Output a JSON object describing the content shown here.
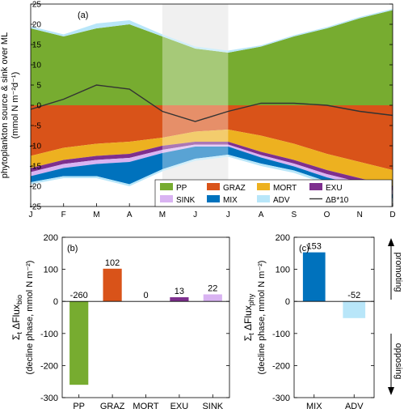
{
  "chart_data": [
    {
      "panel_label": "(a)",
      "type": "area",
      "ylabel_lines": [
        "phytoplankton source & sink over ML",
        "(mmol N m⁻²d⁻¹)"
      ],
      "x": [
        "J",
        "F",
        "M",
        "A",
        "M",
        "J",
        "J",
        "A",
        "S",
        "O",
        "N",
        "D"
      ],
      "ylim": [
        -25,
        25
      ],
      "yticks": [
        25,
        20,
        15,
        10,
        5,
        0,
        -5,
        -10,
        -15,
        -20,
        -25
      ],
      "shaded_months": [
        "M",
        "J",
        "J"
      ],
      "series": [
        {
          "name": "PP",
          "color": "#77ac30",
          "values": [
            19,
            17,
            19,
            20,
            17,
            14,
            13,
            14.5,
            17,
            19,
            21.5,
            23.5
          ]
        },
        {
          "name": "ADV",
          "color": "#b8e6f9",
          "values": [
            0.5,
            0.5,
            1.2,
            1,
            0.5,
            0.5,
            0.5,
            0.3,
            0.3,
            0.3,
            0.3,
            0.3
          ]
        },
        {
          "name": "GRAZ",
          "color": "#d95319",
          "values": [
            -12.5,
            -10.5,
            -9.5,
            -9,
            -8,
            -6.5,
            -6,
            -7.5,
            -9.5,
            -12,
            -14,
            -16
          ]
        },
        {
          "name": "MORT",
          "color": "#edb120",
          "values": [
            -3,
            -3,
            -3,
            -3,
            -2,
            -2.5,
            -3,
            -4,
            -4,
            -4,
            -4,
            -4
          ]
        },
        {
          "name": "EXU",
          "color": "#7e2f8e",
          "values": [
            -1,
            -1,
            -1,
            -1,
            -1,
            -0.7,
            -0.7,
            -0.8,
            -0.9,
            -1,
            -1,
            -1
          ]
        },
        {
          "name": "SINK",
          "color": "#d9b3f2",
          "values": [
            -1,
            -1,
            -1,
            -1,
            -0.8,
            -0.5,
            -0.5,
            -0.6,
            -0.7,
            -0.8,
            -0.9,
            -1
          ]
        },
        {
          "name": "MIX",
          "color": "#0072bd",
          "values": [
            -1.5,
            -2,
            -3,
            -5.5,
            -4,
            -3,
            -2,
            -1.5,
            -1,
            -1,
            -1,
            -1
          ]
        },
        {
          "name": "ADV",
          "color": "#b8e6f9",
          "values": [
            -0.5,
            -0.5,
            -0.5,
            -0.5,
            -0.5,
            -0.5,
            -0.5,
            -0.6,
            -0.6,
            -0.7,
            -0.7,
            -0.8
          ]
        }
      ],
      "line_series": {
        "name": "ΔB*10",
        "color": "#333333",
        "values": [
          -1,
          1.5,
          5,
          4,
          -1.5,
          -4,
          -1.5,
          0.5,
          0.5,
          0,
          -1.5,
          -2.5
        ]
      },
      "legend": [
        "PP",
        "GRAZ",
        "MORT",
        "EXU",
        "SINK",
        "MIX",
        "ADV",
        "ΔB*10"
      ],
      "legend_placement": "bottom-right"
    },
    {
      "panel_label": "(b)",
      "type": "bar",
      "ylabel_lines": [
        "Σ_t ΔFlux_bio",
        "(decline phase, mmol N m⁻²)"
      ],
      "categories": [
        "PP",
        "GRAZ",
        "MORT",
        "EXU",
        "SINK"
      ],
      "values": [
        -260,
        102,
        0,
        13,
        22
      ],
      "value_labels": [
        "-260",
        "102",
        "0",
        "13",
        "22"
      ],
      "colors": [
        "#77ac30",
        "#d95319",
        "#edb120",
        "#7e2f8e",
        "#d9b3f2"
      ],
      "ylim": [
        -300,
        200
      ],
      "yticks": [
        200,
        100,
        0,
        -100,
        -200,
        -300
      ]
    },
    {
      "panel_label": "(c)",
      "type": "bar",
      "ylabel_lines": [
        "Σ_t ΔFlux_phy",
        "(decline phase, mmol N m⁻²)"
      ],
      "categories": [
        "MIX",
        "ADV"
      ],
      "values": [
        153,
        -52
      ],
      "value_labels": [
        "153",
        "-52"
      ],
      "colors": [
        "#0072bd",
        "#b8e6f9"
      ],
      "ylim": [
        -300,
        200
      ],
      "yticks": [
        200,
        100,
        0,
        -100,
        -200,
        -300
      ]
    }
  ],
  "side_annotations": {
    "promoting": "promoting",
    "opposing": "opposing"
  }
}
